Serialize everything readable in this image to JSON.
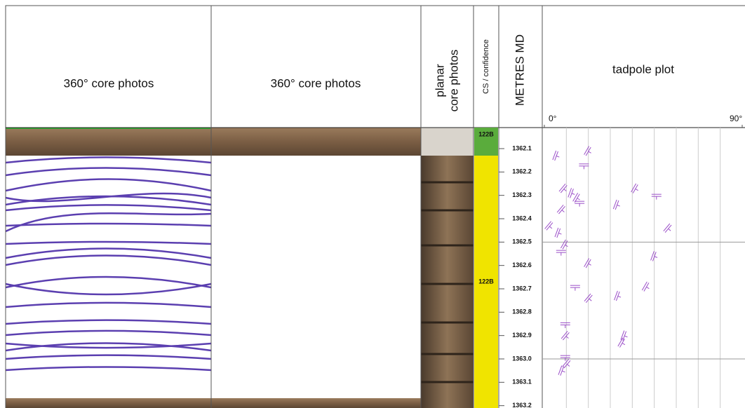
{
  "columns": [
    {
      "title": "360° core photos"
    },
    {
      "title": "360° core photos"
    },
    {
      "title_lines": [
        "planar",
        "core photos"
      ]
    },
    {
      "title": "CS / confidence"
    },
    {
      "title": "METRES MD"
    },
    {
      "title": "tadpole plot"
    }
  ],
  "cs_zones": [
    {
      "label": "122B",
      "color": "#5aac3c",
      "top": 1362.01,
      "base": 1362.13
    },
    {
      "label": "122B",
      "color": "#f0e400",
      "top": 1362.13,
      "base": 1363.21
    }
  ],
  "chart_data": {
    "type": "scatter",
    "title": "tadpole plot",
    "xlim": [
      0,
      90
    ],
    "xticks": [
      {
        "value": 0,
        "label": "0°"
      },
      {
        "value": 90,
        "label": "90°"
      }
    ],
    "ylim": [
      1362.01,
      1363.21
    ],
    "yticks": [
      1362.1,
      1362.2,
      1362.3,
      1362.4,
      1362.5,
      1362.6,
      1362.7,
      1362.8,
      1362.9,
      {
        "value": 1363.0,
        "label": "1363.0"
      },
      1363.1,
      1363.2
    ],
    "major_depth_lines": [
      1362.5,
      1363.0
    ],
    "grid_step_deg": 10,
    "color": "#9b4fc8",
    "x": [
      5,
      19.6,
      18,
      8.5,
      12,
      14.5,
      16,
      7.6,
      32.6,
      41,
      51,
      2,
      6,
      9,
      7.6,
      56,
      49.6,
      19.6,
      14,
      20,
      33,
      46,
      9.5,
      9.5,
      36,
      35,
      9.5,
      10,
      7.6
    ],
    "values": [
      1362.13,
      1362.11,
      1362.17,
      1362.27,
      1362.29,
      1362.31,
      1362.33,
      1362.36,
      1362.34,
      1362.27,
      1362.3,
      1362.43,
      1362.46,
      1362.51,
      1362.54,
      1362.44,
      1362.56,
      1362.59,
      1362.69,
      1362.74,
      1362.73,
      1362.69,
      1362.85,
      1362.9,
      1362.9,
      1362.93,
      1362.99,
      1363.02,
      1363.05
    ]
  }
}
